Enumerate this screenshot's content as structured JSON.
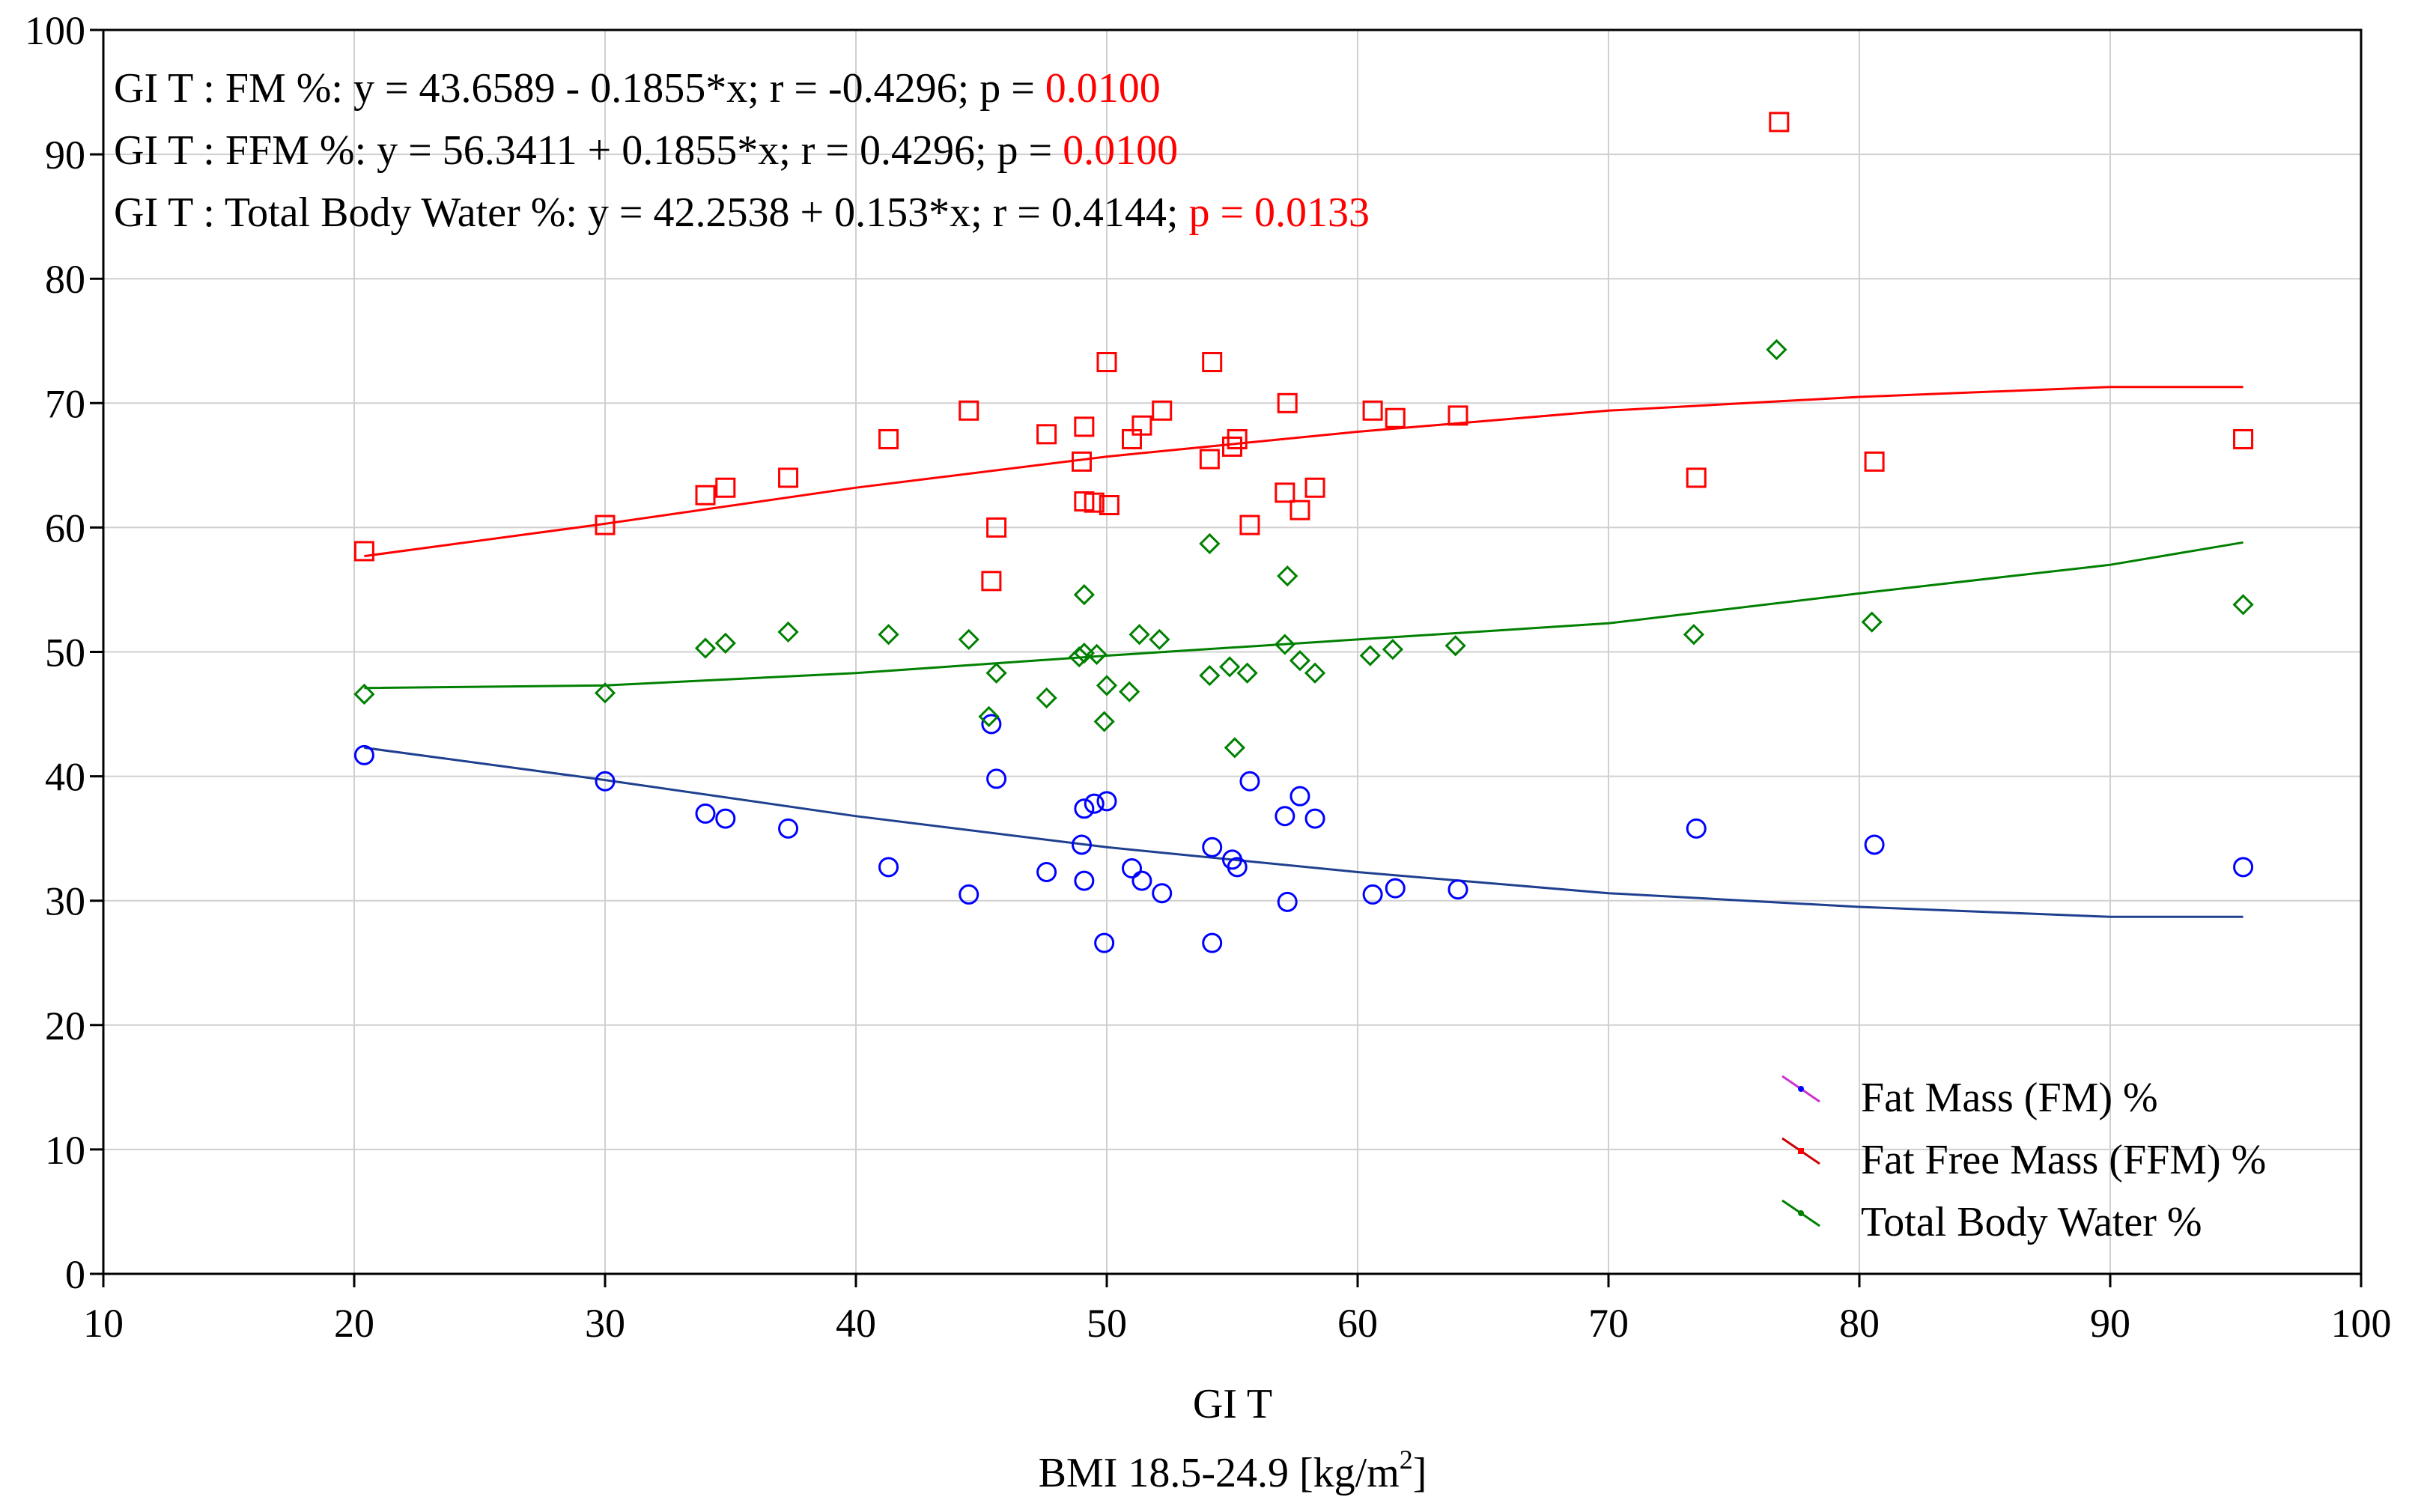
{
  "chart_data": {
    "type": "scatter",
    "title": "",
    "xlabel": "GI T",
    "xlabel_sub": {
      "main": "BMI 18.5-24.9 [kg/m",
      "sup": "2",
      "end": "]"
    },
    "xlim": [
      10,
      100
    ],
    "ylim": [
      0,
      100
    ],
    "x_ticks": [
      10,
      20,
      30,
      40,
      50,
      60,
      70,
      80,
      90,
      100
    ],
    "y_ticks": [
      0,
      10,
      20,
      30,
      40,
      50,
      60,
      70,
      80,
      90,
      100
    ],
    "grid": true,
    "legend_position": "bottom-right",
    "annotations": [
      {
        "black": "GI T : FM %: y = 43.6589 - 0.1855*x; r = -0.4296; p = ",
        "red": "0.0100"
      },
      {
        "black": "GI T : FFM %: y = 56.3411 + 0.1855*x; r = 0.4296; p = ",
        "red": "0.0100"
      },
      {
        "black": "GI T : Total Body Water %: y = 42.2538 + 0.153*x;  r = 0.4144; ",
        "red": "p = 0.0133"
      }
    ],
    "colors": {
      "annotation_red": "#ff0000"
    },
    "series": [
      {
        "name": "Fat Mass (FM) %",
        "marker": "circle",
        "color": "#0000ff",
        "legend_color": "#cc33cc",
        "line_color": "#1f3f8f",
        "fit": [
          [
            20.4,
            42.3
          ],
          [
            30,
            39.7
          ],
          [
            40,
            36.8
          ],
          [
            50,
            34.3
          ],
          [
            60,
            32.3
          ],
          [
            70,
            30.6
          ],
          [
            80,
            29.5
          ],
          [
            90,
            28.7
          ],
          [
            95.3,
            28.7
          ]
        ],
        "points": [
          [
            20.4,
            41.7
          ],
          [
            30,
            39.6
          ],
          [
            34,
            37
          ],
          [
            34.8,
            36.6
          ],
          [
            37.3,
            35.8
          ],
          [
            41.3,
            32.7
          ],
          [
            44.5,
            30.5
          ],
          [
            45.4,
            44.2
          ],
          [
            45.6,
            39.8
          ],
          [
            47.6,
            32.3
          ],
          [
            49,
            34.5
          ],
          [
            49.1,
            37.4
          ],
          [
            49.1,
            31.6
          ],
          [
            49.5,
            37.8
          ],
          [
            50,
            38
          ],
          [
            49.9,
            26.6
          ],
          [
            51,
            32.6
          ],
          [
            51.4,
            31.6
          ],
          [
            52.2,
            30.6
          ],
          [
            54.2,
            34.3
          ],
          [
            54.2,
            26.6
          ],
          [
            55,
            33.3
          ],
          [
            55.2,
            32.7
          ],
          [
            55.7,
            39.6
          ],
          [
            57.1,
            36.8
          ],
          [
            57.2,
            29.9
          ],
          [
            57.7,
            38.4
          ],
          [
            58.3,
            36.6
          ],
          [
            60.6,
            30.5
          ],
          [
            61.5,
            31
          ],
          [
            64,
            30.9
          ],
          [
            73.5,
            35.8
          ],
          [
            80.6,
            34.5
          ],
          [
            95.3,
            32.7
          ]
        ]
      },
      {
        "name": "Fat Free Mass (FFM) %",
        "marker": "square",
        "color": "#ff0000",
        "legend_color": "#cc0000",
        "line_color": "#ff0000",
        "fit": [
          [
            20.4,
            57.7
          ],
          [
            30,
            60.3
          ],
          [
            40,
            63.2
          ],
          [
            50,
            65.7
          ],
          [
            60,
            67.7
          ],
          [
            70,
            69.4
          ],
          [
            80,
            70.5
          ],
          [
            90,
            71.3
          ],
          [
            95.3,
            71.3
          ]
        ],
        "points": [
          [
            20.4,
            58.1
          ],
          [
            30,
            60.2
          ],
          [
            34,
            62.6
          ],
          [
            34.8,
            63.2
          ],
          [
            37.3,
            64
          ],
          [
            41.3,
            67.1
          ],
          [
            44.5,
            69.4
          ],
          [
            45.4,
            55.7
          ],
          [
            45.6,
            60
          ],
          [
            47.6,
            67.5
          ],
          [
            49,
            65.3
          ],
          [
            49.1,
            68.1
          ],
          [
            49.1,
            62.1
          ],
          [
            49.5,
            62
          ],
          [
            50,
            73.3
          ],
          [
            50.1,
            61.8
          ],
          [
            51,
            67.1
          ],
          [
            51.4,
            68.2
          ],
          [
            52.2,
            69.4
          ],
          [
            54.1,
            65.5
          ],
          [
            54.2,
            73.3
          ],
          [
            55,
            66.5
          ],
          [
            55.2,
            67.1
          ],
          [
            55.7,
            60.2
          ],
          [
            57.1,
            62.8
          ],
          [
            57.2,
            70
          ],
          [
            57.7,
            61.4
          ],
          [
            58.3,
            63.2
          ],
          [
            60.6,
            69.4
          ],
          [
            61.5,
            68.8
          ],
          [
            64,
            69
          ],
          [
            73.5,
            64
          ],
          [
            76.8,
            92.6
          ],
          [
            80.6,
            65.3
          ],
          [
            95.3,
            67.1
          ]
        ]
      },
      {
        "name": "Total Body Water %",
        "marker": "diamond",
        "color": "#008000",
        "legend_color": "#008000",
        "line_color": "#008000",
        "fit": [
          [
            20.4,
            47.1
          ],
          [
            30,
            47.3
          ],
          [
            40,
            48.3
          ],
          [
            50,
            49.7
          ],
          [
            60,
            51
          ],
          [
            70,
            52.3
          ],
          [
            80,
            54.7
          ],
          [
            90,
            57
          ],
          [
            95.3,
            58.8
          ]
        ],
        "points": [
          [
            20.4,
            46.6
          ],
          [
            30,
            46.7
          ],
          [
            34,
            50.3
          ],
          [
            34.8,
            50.7
          ],
          [
            37.3,
            51.6
          ],
          [
            41.3,
            51.4
          ],
          [
            44.5,
            51
          ],
          [
            45.3,
            44.8
          ],
          [
            45.6,
            48.3
          ],
          [
            47.6,
            46.3
          ],
          [
            48.9,
            49.6
          ],
          [
            49.1,
            54.6
          ],
          [
            49.1,
            49.9
          ],
          [
            49.6,
            49.8
          ],
          [
            49.9,
            44.4
          ],
          [
            50,
            47.3
          ],
          [
            50.9,
            46.8
          ],
          [
            51.3,
            51.4
          ],
          [
            52.1,
            51
          ],
          [
            54.1,
            48.1
          ],
          [
            54.1,
            58.7
          ],
          [
            54.9,
            48.8
          ],
          [
            55.1,
            42.3
          ],
          [
            55.6,
            48.3
          ],
          [
            57.1,
            50.6
          ],
          [
            57.2,
            56.1
          ],
          [
            57.7,
            49.3
          ],
          [
            58.3,
            48.3
          ],
          [
            60.5,
            49.7
          ],
          [
            61.4,
            50.2
          ],
          [
            63.9,
            50.5
          ],
          [
            73.4,
            51.4
          ],
          [
            76.7,
            74.3
          ],
          [
            80.5,
            52.4
          ],
          [
            95.3,
            53.8
          ]
        ]
      }
    ]
  }
}
